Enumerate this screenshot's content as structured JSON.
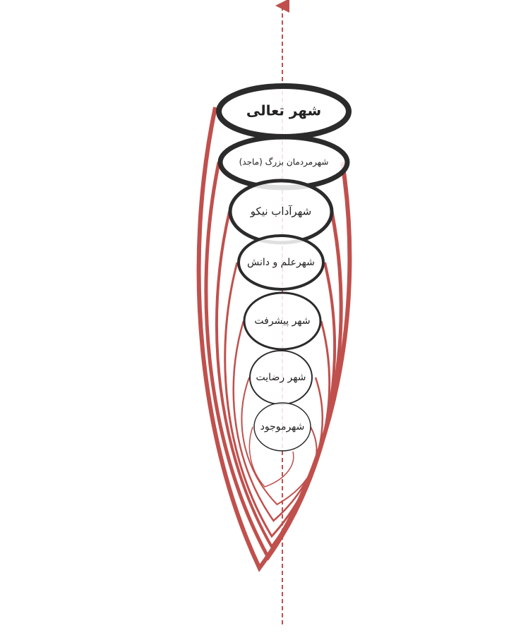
{
  "nodes": [
    {
      "label": "شهر تعالی"
    },
    {
      "label": "شهرمردمان بزرگ (ماجد)"
    },
    {
      "label": "شهرآداب نیکو"
    },
    {
      "label": "شهرعلم و دانش"
    },
    {
      "label": "شهر پیشرفت"
    },
    {
      "label": "شهر رضایت"
    },
    {
      "label": "شهرموجود"
    }
  ]
}
